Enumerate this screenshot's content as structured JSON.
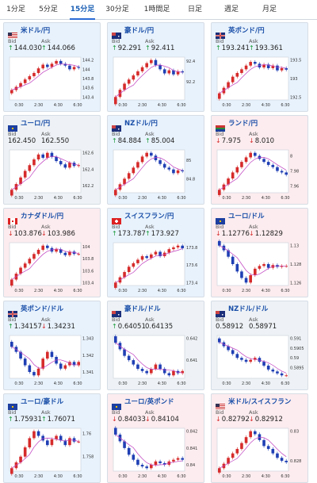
{
  "tabs": [
    {
      "label": "1分足",
      "active": false
    },
    {
      "label": "5分足",
      "active": false
    },
    {
      "label": "15分足",
      "active": true
    },
    {
      "label": "30分足",
      "active": false
    },
    {
      "label": "1時間足",
      "active": false
    },
    {
      "label": "日足",
      "active": false
    },
    {
      "label": "週足",
      "active": false
    },
    {
      "label": "月足",
      "active": false
    }
  ],
  "bid_label": "Bid",
  "ask_label": "Ask",
  "colors": {
    "up": "#1a9a3a",
    "down": "#d62b2b",
    "ma": "#c040c0",
    "bull": "#d62b2b",
    "bear": "#1f3fb4"
  },
  "cards": [
    {
      "pair": "米ドル/円",
      "flag": "us",
      "state": "up",
      "bid": "144.030",
      "ask": "144.066",
      "bid_dir": "up",
      "ask_dir": "up",
      "x_ticks": [
        "0:30",
        "2:30",
        "4:30",
        "6:30"
      ],
      "y_ticks": [
        "144.2",
        "144",
        "143.8",
        "143.6",
        "143.4"
      ],
      "closes": [
        143.55,
        143.62,
        143.7,
        143.78,
        143.85,
        143.92,
        144.02,
        144.1,
        144.05,
        144.12,
        144.18,
        144.12,
        144.08,
        144.0,
        144.05,
        144.03
      ]
    },
    {
      "pair": "豪ドル/円",
      "flag": "au",
      "state": "up",
      "bid": "92.291",
      "ask": "92.411",
      "bid_dir": "up",
      "ask_dir": "up",
      "x_ticks": [
        "0:30",
        "2:30",
        "4:30",
        "6:30"
      ],
      "y_ticks": [
        "92.4",
        "92.2"
      ],
      "closes": [
        92.05,
        92.12,
        92.18,
        92.22,
        92.26,
        92.3,
        92.34,
        92.38,
        92.41,
        92.36,
        92.32,
        92.28,
        92.31,
        92.27,
        92.3,
        92.29
      ]
    },
    {
      "pair": "英ポンド/円",
      "flag": "gb",
      "state": "up",
      "bid": "193.241",
      "ask": "193.361",
      "bid_dir": "up",
      "ask_dir": "up",
      "x_ticks": [
        "0:30",
        "2:30",
        "4:30",
        "6:30"
      ],
      "y_ticks": [
        "193.5",
        "193",
        "192.5"
      ],
      "closes": [
        192.6,
        192.75,
        192.9,
        193.05,
        193.15,
        193.25,
        193.35,
        193.45,
        193.4,
        193.3,
        193.38,
        193.28,
        193.35,
        193.22,
        193.28,
        193.24
      ]
    },
    {
      "pair": "ユーロ/円",
      "flag": "eu",
      "state": "flat",
      "bid": "162.450",
      "ask": "162.550",
      "bid_dir": "",
      "ask_dir": "",
      "x_ticks": [
        "0:30",
        "2:30",
        "4:30",
        "6:30"
      ],
      "y_ticks": [
        "162.6",
        "162.4",
        "162.2"
      ],
      "closes": [
        162.15,
        162.22,
        162.3,
        162.38,
        162.45,
        162.52,
        162.58,
        162.54,
        162.6,
        162.55,
        162.5,
        162.46,
        162.42,
        162.48,
        162.44,
        162.45
      ]
    },
    {
      "pair": "NZドル/円",
      "flag": "nz",
      "state": "up",
      "bid": "84.884",
      "ask": "85.004",
      "bid_dir": "up",
      "ask_dir": "up",
      "x_ticks": [
        "0:30",
        "2:30",
        "4:30",
        "6:30"
      ],
      "y_ticks": [
        "85",
        "84.8"
      ],
      "closes": [
        84.68,
        84.74,
        84.8,
        84.86,
        84.92,
        84.98,
        85.04,
        85.08,
        85.05,
        85.0,
        84.96,
        84.92,
        84.9,
        84.86,
        84.89,
        84.88
      ]
    },
    {
      "pair": "ランド/円",
      "flag": "za",
      "state": "down",
      "bid": "7.975",
      "ask": "8.010",
      "bid_dir": "down",
      "ask_dir": "down",
      "x_ticks": [
        "0:30",
        "2:30",
        "4:30",
        "6:30"
      ],
      "y_ticks": [
        "8",
        "7.98",
        "7.96"
      ],
      "closes": [
        7.955,
        7.962,
        7.97,
        7.978,
        7.985,
        7.992,
        7.998,
        8.004,
        8.0,
        7.996,
        7.992,
        7.988,
        7.985,
        7.98,
        7.978,
        7.975
      ]
    },
    {
      "pair": "カナダドル/円",
      "flag": "ca",
      "state": "down",
      "bid": "103.876",
      "ask": "103.986",
      "bid_dir": "down",
      "ask_dir": "down",
      "x_ticks": [
        "0:30",
        "2:30",
        "4:30",
        "6:30"
      ],
      "y_ticks": [
        "104",
        "103.8",
        "103.6",
        "103.4"
      ],
      "closes": [
        103.45,
        103.55,
        103.65,
        103.72,
        103.8,
        103.88,
        103.95,
        104.02,
        103.98,
        103.92,
        103.96,
        103.9,
        103.86,
        103.92,
        103.88,
        103.88
      ]
    },
    {
      "pair": "スイスフラン/円",
      "flag": "ch",
      "state": "up",
      "bid": "173.787",
      "ask": "173.927",
      "bid_dir": "up",
      "ask_dir": "up",
      "x_ticks": [
        "0:30",
        "2:30",
        "4:30",
        "6:30"
      ],
      "y_ticks": [
        "173.8",
        "173.6",
        "173.4"
      ],
      "closes": [
        173.4,
        173.46,
        173.52,
        173.58,
        173.62,
        173.66,
        173.7,
        173.68,
        173.72,
        173.75,
        173.7,
        173.74,
        173.78,
        173.8,
        173.82,
        173.79
      ]
    },
    {
      "pair": "ユーロ/ドル",
      "flag": "eu",
      "state": "down",
      "bid": "1.12776",
      "ask": "1.12829",
      "bid_dir": "down",
      "ask_dir": "down",
      "x_ticks": [
        "0:30",
        "2:30",
        "4:30",
        "6:30"
      ],
      "y_ticks": [
        "1.13",
        "1.128",
        "1.126"
      ],
      "closes": [
        1.13,
        1.1295,
        1.1288,
        1.128,
        1.1272,
        1.1265,
        1.126,
        1.1268,
        1.1275,
        1.1278,
        1.128,
        1.1276,
        1.1279,
        1.1277,
        1.1278,
        1.1278
      ]
    },
    {
      "pair": "英ポンド/ドル",
      "flag": "gb",
      "state": "up",
      "bid": "1.34157",
      "ask": "1.34231",
      "bid_dir": "up",
      "ask_dir": "down",
      "x_ticks": [
        "0:30",
        "2:30",
        "4:30",
        "6:30"
      ],
      "y_ticks": [
        "1.343",
        "1.342",
        "1.341"
      ],
      "closes": [
        1.3425,
        1.3422,
        1.3418,
        1.3414,
        1.341,
        1.3408,
        1.3412,
        1.3418,
        1.3422,
        1.3419,
        1.3415,
        1.3412,
        1.3414,
        1.3416,
        1.3414,
        1.3416
      ]
    },
    {
      "pair": "豪ドル/ドル",
      "flag": "au",
      "state": "flat",
      "bid": "0.64051",
      "ask": "0.64135",
      "bid_dir": "up",
      "ask_dir": "",
      "x_ticks": [
        "0:30",
        "2:30",
        "4:30",
        "6:30"
      ],
      "y_ticks": [
        "0.642",
        "0.641"
      ],
      "closes": [
        0.6418,
        0.6415,
        0.6412,
        0.641,
        0.6408,
        0.6406,
        0.6405,
        0.6404,
        0.6406,
        0.6408,
        0.6406,
        0.6404,
        0.6403,
        0.6405,
        0.6404,
        0.6405
      ]
    },
    {
      "pair": "NZドル/ドル",
      "flag": "nz",
      "state": "flat",
      "bid": "0.58912",
      "ask": "0.58971",
      "bid_dir": "",
      "ask_dir": "",
      "x_ticks": [
        "0:30",
        "2:30",
        "4:30",
        "6:30"
      ],
      "y_ticks": [
        "0.591",
        "0.5905",
        "0.59",
        "0.5895"
      ],
      "closes": [
        0.5908,
        0.5906,
        0.5904,
        0.5902,
        0.59,
        0.5899,
        0.5898,
        0.5899,
        0.59,
        0.5898,
        0.5896,
        0.5894,
        0.5893,
        0.5892,
        0.5891,
        0.5891
      ]
    },
    {
      "pair": "ユーロ/豪ドル",
      "flag": "eu",
      "state": "up",
      "bid": "1.75931",
      "ask": "1.76071",
      "bid_dir": "up",
      "ask_dir": "up",
      "x_ticks": [
        "0:30",
        "2:30",
        "4:30",
        "6:30"
      ],
      "y_ticks": [
        "1.76",
        "1.758"
      ],
      "closes": [
        1.757,
        1.7575,
        1.758,
        1.7588,
        1.7596,
        1.7602,
        1.7598,
        1.7594,
        1.759,
        1.7595,
        1.7598,
        1.7594,
        1.759,
        1.7596,
        1.7593,
        1.7593
      ]
    },
    {
      "pair": "ユーロ/英ポンド",
      "flag": "eu",
      "state": "down",
      "bid": "0.84033",
      "ask": "0.84104",
      "bid_dir": "down",
      "ask_dir": "down",
      "x_ticks": [
        "0:30",
        "2:30",
        "4:30",
        "6:30"
      ],
      "y_ticks": [
        "0.842",
        "0.841",
        "0.84"
      ],
      "closes": [
        0.8418,
        0.8414,
        0.841,
        0.8406,
        0.8403,
        0.84,
        0.8399,
        0.8398,
        0.84,
        0.8402,
        0.8401,
        0.84,
        0.8402,
        0.8403,
        0.8404,
        0.8403
      ]
    },
    {
      "pair": "米ドル/スイスフラン",
      "flag": "us",
      "state": "down",
      "bid": "0.82792",
      "ask": "0.82912",
      "bid_dir": "down",
      "ask_dir": "down",
      "x_ticks": [
        "0:30",
        "2:30",
        "4:30",
        "6:30"
      ],
      "y_ticks": [
        "0.83",
        "0.828"
      ],
      "closes": [
        0.8275,
        0.8278,
        0.8282,
        0.8285,
        0.8288,
        0.8292,
        0.8296,
        0.83,
        0.8298,
        0.8294,
        0.829,
        0.8288,
        0.8285,
        0.8282,
        0.828,
        0.8279
      ]
    }
  ]
}
